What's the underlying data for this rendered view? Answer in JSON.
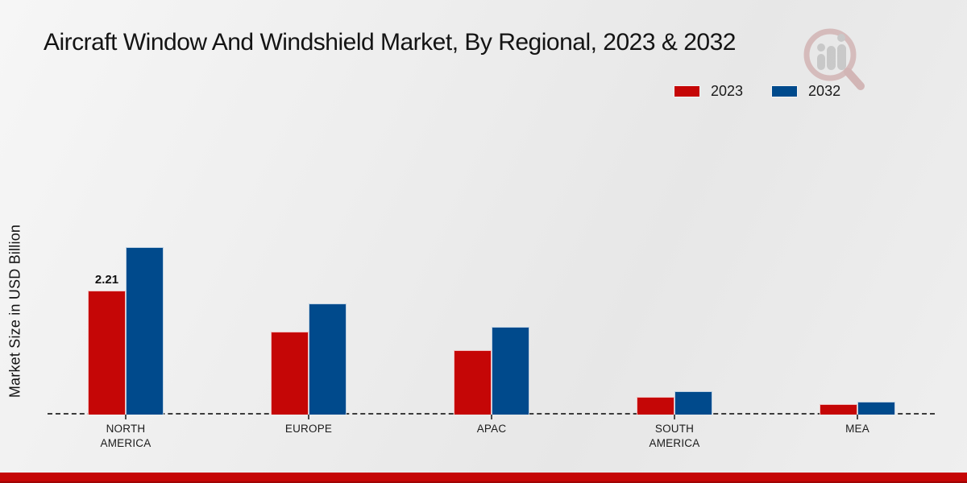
{
  "title": "Aircraft Window And Windshield Market, By Regional, 2023 & 2032",
  "ylabel": "Market Size in USD Billion",
  "colors": {
    "series_2023": "#c50606",
    "series_2032": "#004a8c",
    "footer_band": "#c50606"
  },
  "watermark": "market-research-future-logo",
  "chart_data": {
    "type": "bar",
    "categories": [
      "NORTH AMERICA",
      "EUROPE",
      "APAC",
      "SOUTH AMERICA",
      "MEA"
    ],
    "series": [
      {
        "name": "2023",
        "color": "#c50606",
        "values": [
          2.21,
          1.48,
          1.15,
          0.32,
          0.19
        ]
      },
      {
        "name": "2032",
        "color": "#004a8c",
        "values": [
          2.98,
          1.98,
          1.56,
          0.42,
          0.23
        ]
      }
    ],
    "annotations": [
      {
        "series": "2023",
        "category": "NORTH AMERICA",
        "text": "2.21"
      }
    ],
    "ylabel": "Market Size in USD Billion",
    "ylim": [
      0,
      3.3
    ],
    "grid": false,
    "y_axis_ticks": "none",
    "baseline_style": "dashed",
    "legend_position": "top-right"
  }
}
